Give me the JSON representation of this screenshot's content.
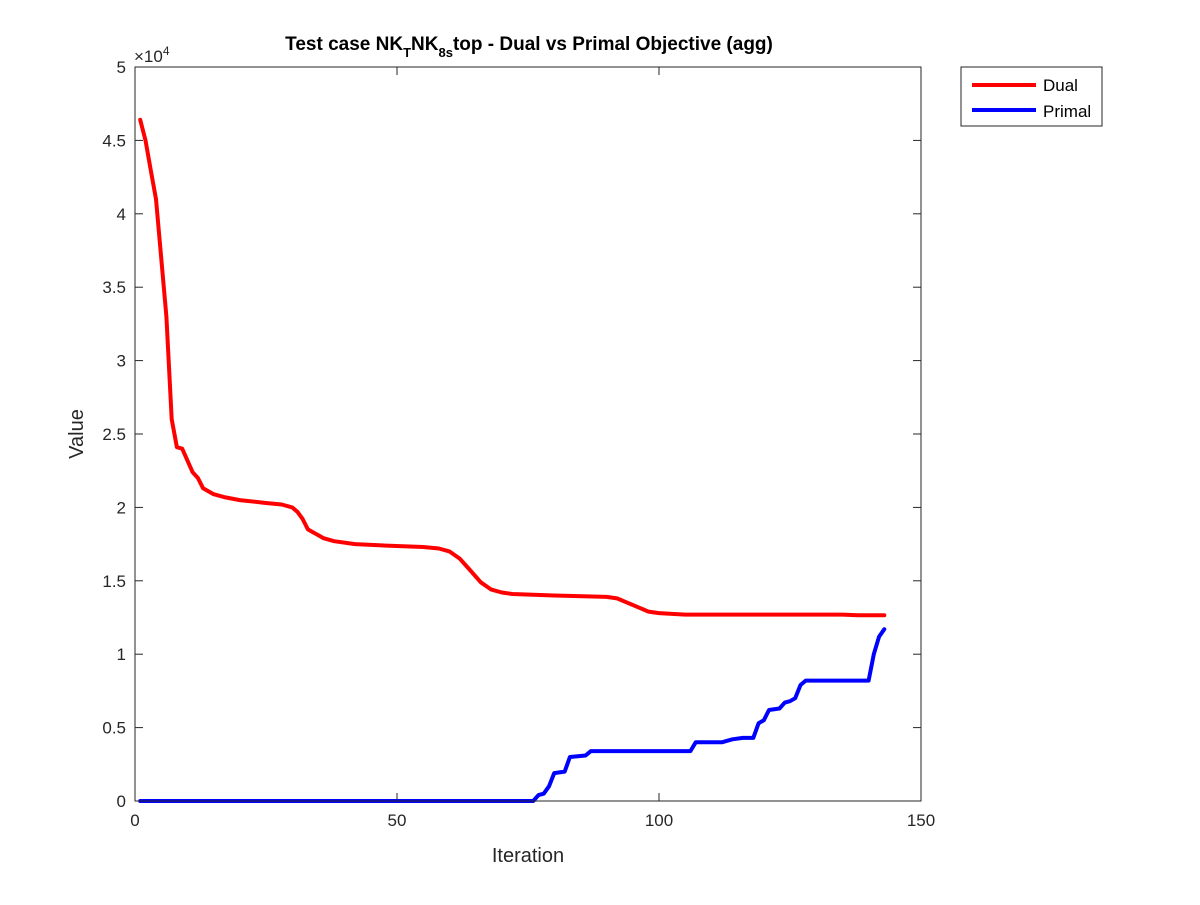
{
  "chart_data": {
    "type": "line",
    "title": {
      "prefix": "Test case NK",
      "sub1": "T",
      "mid": "NK",
      "sub2": "8s",
      "suffix": "top - Dual vs Primal Objective (agg)"
    },
    "xlabel": "Iteration",
    "ylabel": "Value",
    "xlim": [
      0,
      150
    ],
    "ylim": [
      0,
      50000
    ],
    "xticks": [
      0,
      50,
      100,
      150
    ],
    "xtick_labels": [
      "0",
      "50",
      "100",
      "150"
    ],
    "yticks": [
      0,
      5000,
      10000,
      15000,
      20000,
      25000,
      30000,
      35000,
      40000,
      45000,
      50000
    ],
    "ytick_labels": [
      "0",
      "0.5",
      "1",
      "1.5",
      "2",
      "2.5",
      "3",
      "3.5",
      "4",
      "4.5",
      "5"
    ],
    "y_exponent": {
      "base": "×10",
      "power": "4"
    },
    "grid": false,
    "legend_position": "outside-top-right",
    "series": [
      {
        "name": "Dual",
        "color": "#ff0000",
        "points": [
          [
            1,
            46400
          ],
          [
            2,
            45000
          ],
          [
            3,
            43000
          ],
          [
            4,
            41000
          ],
          [
            5,
            37000
          ],
          [
            6,
            33000
          ],
          [
            7,
            26000
          ],
          [
            8,
            24100
          ],
          [
            9,
            24000
          ],
          [
            10,
            23200
          ],
          [
            11,
            22400
          ],
          [
            12,
            22000
          ],
          [
            13,
            21300
          ],
          [
            15,
            20900
          ],
          [
            17,
            20700
          ],
          [
            20,
            20500
          ],
          [
            25,
            20300
          ],
          [
            28,
            20200
          ],
          [
            30,
            20000
          ],
          [
            31,
            19700
          ],
          [
            32,
            19200
          ],
          [
            33,
            18500
          ],
          [
            34,
            18300
          ],
          [
            35,
            18100
          ],
          [
            36,
            17900
          ],
          [
            38,
            17700
          ],
          [
            42,
            17500
          ],
          [
            48,
            17400
          ],
          [
            55,
            17300
          ],
          [
            58,
            17200
          ],
          [
            60,
            17000
          ],
          [
            62,
            16500
          ],
          [
            64,
            15700
          ],
          [
            66,
            14900
          ],
          [
            68,
            14400
          ],
          [
            70,
            14200
          ],
          [
            72,
            14100
          ],
          [
            80,
            14000
          ],
          [
            90,
            13900
          ],
          [
            92,
            13800
          ],
          [
            94,
            13500
          ],
          [
            96,
            13200
          ],
          [
            98,
            12900
          ],
          [
            100,
            12800
          ],
          [
            105,
            12700
          ],
          [
            120,
            12700
          ],
          [
            135,
            12700
          ],
          [
            138,
            12650
          ],
          [
            143,
            12650
          ]
        ]
      },
      {
        "name": "Primal",
        "color": "#0000ff",
        "points": [
          [
            1,
            0
          ],
          [
            76,
            0
          ],
          [
            77,
            400
          ],
          [
            78,
            500
          ],
          [
            79,
            1000
          ],
          [
            80,
            1900
          ],
          [
            82,
            2000
          ],
          [
            83,
            3000
          ],
          [
            86,
            3100
          ],
          [
            87,
            3400
          ],
          [
            106,
            3400
          ],
          [
            107,
            4000
          ],
          [
            112,
            4000
          ],
          [
            113,
            4100
          ],
          [
            114,
            4200
          ],
          [
            116,
            4300
          ],
          [
            118,
            4300
          ],
          [
            119,
            5300
          ],
          [
            120,
            5500
          ],
          [
            121,
            6200
          ],
          [
            123,
            6300
          ],
          [
            124,
            6700
          ],
          [
            125,
            6800
          ],
          [
            126,
            7000
          ],
          [
            127,
            7900
          ],
          [
            128,
            8200
          ],
          [
            140,
            8200
          ],
          [
            141,
            10000
          ],
          [
            142,
            11200
          ],
          [
            143,
            11700
          ]
        ]
      }
    ]
  }
}
